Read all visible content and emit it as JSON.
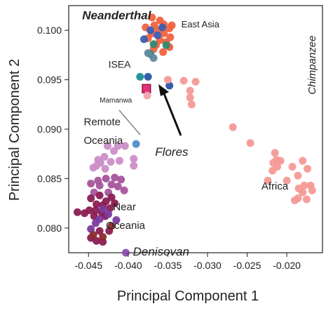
{
  "chart_data": {
    "type": "scatter",
    "xlabel": "Principal Component 1",
    "ylabel": "Principal Component 2",
    "xlim": [
      -0.0475,
      -0.0155
    ],
    "ylim": [
      0.0775,
      0.1025
    ],
    "xticks": [
      -0.045,
      -0.04,
      -0.035,
      -0.03,
      -0.025,
      -0.02
    ],
    "yticks": [
      0.08,
      0.085,
      0.09,
      0.095,
      0.1
    ],
    "xtick_labels": [
      "-0.045",
      "-0.040",
      "-0.035",
      "-0.030",
      "-0.025",
      "-0.020"
    ],
    "ytick_labels": [
      "0.080",
      "0.085",
      "0.090",
      "0.095",
      "0.100"
    ],
    "grid": false,
    "annotations": [
      {
        "text": "Neanderthal",
        "x": -0.0458,
        "y": 0.1011,
        "italic": true,
        "bold": true,
        "size": 17
      },
      {
        "text": "East Asia",
        "x": -0.0333,
        "y": 0.1003,
        "italic": false,
        "size": 13
      },
      {
        "text": "ISEA",
        "x": -0.0425,
        "y": 0.0962,
        "italic": false,
        "size": 14
      },
      {
        "text": "Mamanwa",
        "x": -0.0436,
        "y": 0.0927,
        "italic": false,
        "size": 10
      },
      {
        "text": "Remote",
        "x": -0.0456,
        "y": 0.0904,
        "italic": false,
        "size": 15
      },
      {
        "text": "Oceania",
        "x": -0.0456,
        "y": 0.0885,
        "italic": false,
        "size": 15
      },
      {
        "text": "Flores",
        "x": -0.0366,
        "y": 0.0873,
        "italic": true,
        "size": 17
      },
      {
        "text": "Chimpanzee",
        "x": -0.0164,
        "y": 0.0935,
        "italic": true,
        "size": 15,
        "rotate": -90
      },
      {
        "text": "Africa",
        "x": -0.0232,
        "y": 0.0839,
        "italic": false,
        "size": 15
      },
      {
        "text": "Near",
        "x": -0.0419,
        "y": 0.0818,
        "italic": false,
        "size": 15
      },
      {
        "text": "Oceania",
        "x": -0.0428,
        "y": 0.0799,
        "italic": false,
        "size": 15
      },
      {
        "text": "Denisovan",
        "x": -0.0394,
        "y": 0.0772,
        "italic": true,
        "size": 17
      }
    ],
    "series": [
      {
        "color": "#f06240",
        "values": [
          [
            -0.037,
            0.1013
          ],
          [
            -0.036,
            0.101
          ],
          [
            -0.0355,
            0.1006
          ],
          [
            -0.0367,
            0.1005
          ],
          [
            -0.0348,
            0.1002
          ],
          [
            -0.0362,
            0.1
          ],
          [
            -0.0355,
            0.0997
          ],
          [
            -0.037,
            0.0997
          ],
          [
            -0.0347,
            0.0993
          ],
          [
            -0.036,
            0.099
          ],
          [
            -0.0352,
            0.0988
          ],
          [
            -0.0365,
            0.0985
          ],
          [
            -0.0348,
            0.0983
          ],
          [
            -0.0375,
            0.0992
          ],
          [
            -0.0356,
            0.0978
          ],
          [
            -0.0368,
            0.0981
          ],
          [
            -0.0345,
            0.1005
          ],
          [
            -0.0378,
            0.1003
          ]
        ]
      },
      {
        "color": "#3a5fb0",
        "values": [
          [
            -0.0372,
            0.1
          ],
          [
            -0.038,
            0.0991
          ],
          [
            -0.0363,
            0.0995
          ],
          [
            -0.0357,
            0.1003
          ]
        ]
      },
      {
        "color": "#2f8a72",
        "values": [
          [
            -0.0368,
            0.0986
          ],
          [
            -0.0352,
            0.0985
          ],
          [
            -0.0372,
            0.0976
          ]
        ]
      },
      {
        "color": "#5f8aa0",
        "values": [
          [
            -0.0368,
            0.0972
          ],
          [
            -0.0375,
            0.0977
          ]
        ]
      },
      {
        "color": "#1e8f94",
        "values": [
          [
            -0.0385,
            0.0953
          ]
        ]
      },
      {
        "color": "#2856a5",
        "values": [
          [
            -0.0375,
            0.0953
          ],
          [
            -0.0348,
            0.0944
          ]
        ]
      },
      {
        "color": "#4f8ec8",
        "values": [
          [
            -0.039,
            0.0885
          ]
        ]
      },
      {
        "color": "#e2307a",
        "marker": "square",
        "values": [
          [
            -0.0377,
            0.0941
          ]
        ]
      },
      {
        "color": "#f0a5b0",
        "values": [
          [
            -0.0376,
            0.0934
          ]
        ]
      },
      {
        "color": "#f49a96",
        "values": [
          [
            -0.035,
            0.095
          ],
          [
            -0.033,
            0.0949
          ],
          [
            -0.0315,
            0.0948
          ],
          [
            -0.0322,
            0.0939
          ],
          [
            -0.0322,
            0.0932
          ],
          [
            -0.032,
            0.0925
          ],
          [
            -0.0268,
            0.0902
          ],
          [
            -0.0246,
            0.0886
          ],
          [
            -0.0215,
            0.0876
          ],
          [
            -0.0213,
            0.0869
          ],
          [
            -0.0217,
            0.0866
          ],
          [
            -0.0208,
            0.0868
          ],
          [
            -0.0212,
            0.0862
          ],
          [
            -0.0218,
            0.0858
          ],
          [
            -0.0224,
            0.0848
          ],
          [
            -0.02,
            0.0848
          ],
          [
            -0.0193,
            0.0862
          ],
          [
            -0.018,
            0.0868
          ],
          [
            -0.0174,
            0.086
          ],
          [
            -0.0186,
            0.0853
          ],
          [
            -0.0178,
            0.0843
          ],
          [
            -0.0185,
            0.084
          ],
          [
            -0.017,
            0.0843
          ],
          [
            -0.018,
            0.0836
          ],
          [
            -0.0186,
            0.083
          ],
          [
            -0.0175,
            0.0829
          ],
          [
            -0.0168,
            0.0838
          ],
          [
            -0.019,
            0.0828
          ]
        ]
      },
      {
        "color": "#cc8ec8",
        "values": [
          [
            -0.0426,
            0.0883
          ],
          [
            -0.0413,
            0.0883
          ],
          [
            -0.0404,
            0.0883
          ],
          [
            -0.0418,
            0.0878
          ],
          [
            -0.043,
            0.0872
          ],
          [
            -0.0438,
            0.0869
          ],
          [
            -0.0411,
            0.0868
          ],
          [
            -0.0393,
            0.087
          ],
          [
            -0.0435,
            0.0866
          ],
          [
            -0.0422,
            0.0867
          ],
          [
            -0.044,
            0.0863
          ],
          [
            -0.0429,
            0.086
          ],
          [
            -0.0444,
            0.0861
          ],
          [
            -0.0393,
            0.0863
          ]
        ]
      },
      {
        "color": "#a5559a",
        "values": [
          [
            -0.0417,
            0.0851
          ],
          [
            -0.0409,
            0.0849
          ],
          [
            -0.0428,
            0.085
          ],
          [
            -0.0438,
            0.0848
          ],
          [
            -0.0447,
            0.0845
          ],
          [
            -0.0421,
            0.0844
          ],
          [
            -0.0413,
            0.0842
          ],
          [
            -0.0436,
            0.0843
          ],
          [
            -0.0405,
            0.0838
          ],
          [
            -0.0425,
            0.0836
          ],
          [
            -0.0443,
            0.0836
          ]
        ]
      },
      {
        "color": "#8a1e52",
        "values": [
          [
            -0.0436,
            0.0833
          ],
          [
            -0.0447,
            0.083
          ],
          [
            -0.0421,
            0.0831
          ],
          [
            -0.0428,
            0.0827
          ],
          [
            -0.044,
            0.0824
          ],
          [
            -0.0417,
            0.0825
          ],
          [
            -0.0432,
            0.0823
          ],
          [
            -0.0423,
            0.082
          ],
          [
            -0.0449,
            0.0818
          ],
          [
            -0.0441,
            0.0818
          ],
          [
            -0.0433,
            0.0815
          ],
          [
            -0.0429,
            0.0812
          ],
          [
            -0.0443,
            0.0812
          ],
          [
            -0.0464,
            0.0816
          ],
          [
            -0.0455,
            0.0815
          ],
          [
            -0.0447,
            0.079
          ],
          [
            -0.044,
            0.0787
          ],
          [
            -0.0432,
            0.0786
          ],
          [
            -0.0436,
            0.0797
          ],
          [
            -0.0424,
            0.0797
          ]
        ]
      },
      {
        "color": "#7a3aa0",
        "values": [
          [
            -0.0432,
            0.0819
          ],
          [
            -0.0425,
            0.0814
          ],
          [
            -0.0436,
            0.0809
          ],
          [
            -0.0441,
            0.0805
          ],
          [
            -0.0415,
            0.0808
          ],
          [
            -0.0447,
            0.0799
          ]
        ]
      },
      {
        "color": "#8c2a2a",
        "values": [
          [
            -0.0421,
            0.0802
          ],
          [
            -0.0444,
            0.0793
          ],
          [
            -0.0432,
            0.0791
          ]
        ]
      },
      {
        "color": "#8a4fb0",
        "values": [
          [
            -0.0403,
            0.0775
          ]
        ]
      }
    ]
  }
}
